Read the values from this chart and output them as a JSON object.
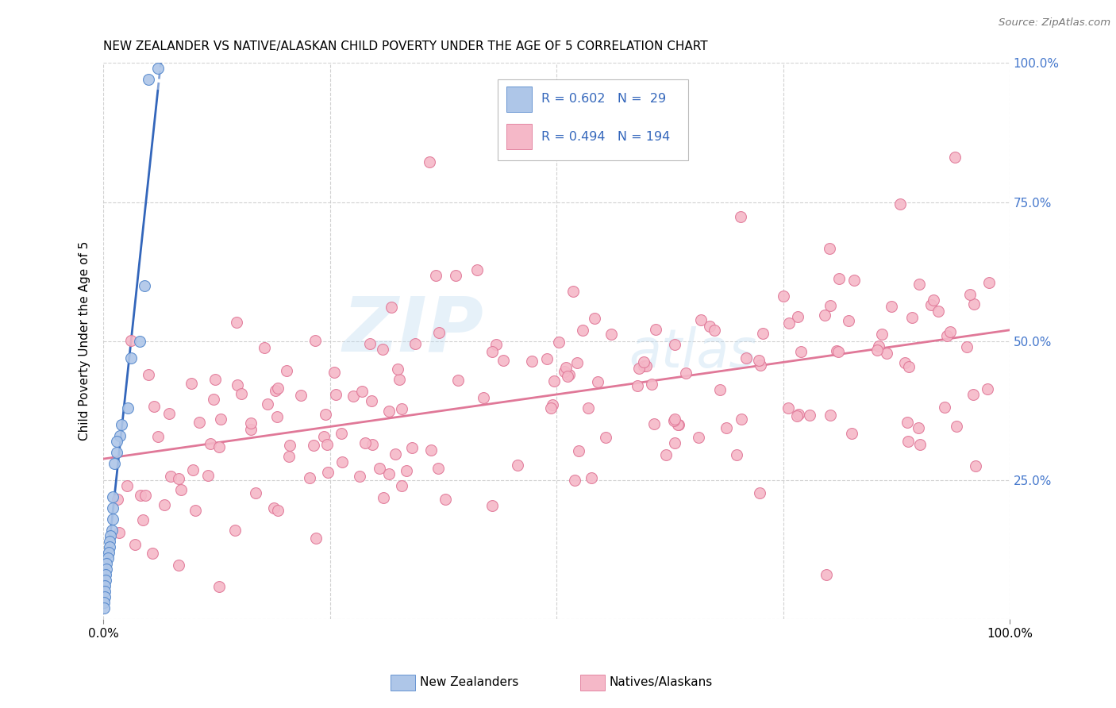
{
  "title": "NEW ZEALANDER VS NATIVE/ALASKAN CHILD POVERTY UNDER THE AGE OF 5 CORRELATION CHART",
  "source": "Source: ZipAtlas.com",
  "ylabel": "Child Poverty Under the Age of 5",
  "xlim": [
    0,
    1
  ],
  "ylim": [
    0,
    1
  ],
  "y_tick_labels": [
    "",
    "25.0%",
    "50.0%",
    "75.0%",
    "100.0%"
  ],
  "y_tick_positions": [
    0.0,
    0.25,
    0.5,
    0.75,
    1.0
  ],
  "legend_r1": "R = 0.602",
  "legend_n1": "N =  29",
  "legend_r2": "R = 0.494",
  "legend_n2": "N = 194",
  "nz_color": "#aec6e8",
  "nz_edge_color": "#5588cc",
  "na_color": "#f5b8c8",
  "na_edge_color": "#e07898",
  "trend_nz_color": "#3366bb",
  "trend_na_color": "#e07898",
  "background_color": "#ffffff",
  "grid_color": "#cccccc",
  "watermark_zip": "ZIP",
  "watermark_atlas": "atlas",
  "nz_N": 29,
  "na_N": 194,
  "title_fontsize": 11,
  "label_fontsize": 11,
  "tick_fontsize": 11
}
